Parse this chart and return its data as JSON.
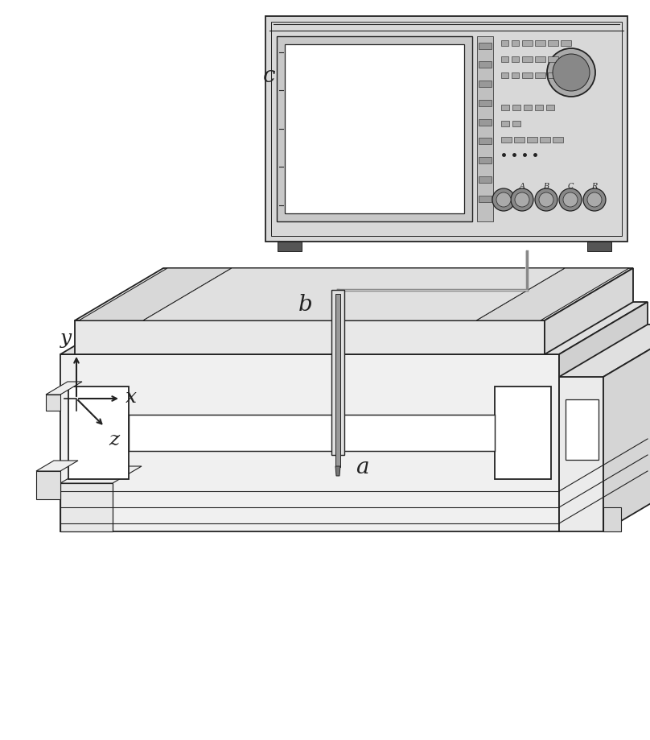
{
  "background_color": "#ffffff",
  "line_color": "#222222",
  "label_a": "a",
  "label_b": "b",
  "label_c": "c",
  "label_x": "x",
  "label_y": "y",
  "label_z": "z",
  "label_fontsize": 20,
  "axis_label_fontsize": 18,
  "figsize": [
    8.08,
    9.19
  ],
  "dpi": 100
}
